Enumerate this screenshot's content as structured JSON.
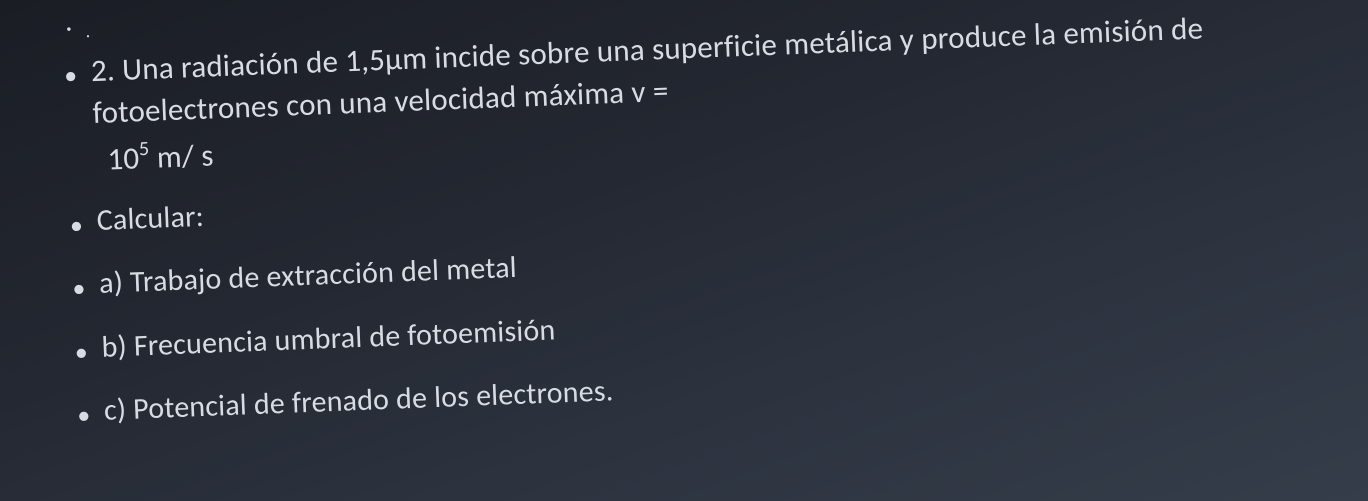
{
  "document": {
    "background_gradient": [
      "#1a1d24",
      "#242832",
      "#2d3440",
      "#353d4a"
    ],
    "text_color": "#d8dce2",
    "font_family": "Calibri",
    "base_fontsize": 30,
    "rotation_deg": -2.2,
    "lines": {
      "dot": ".",
      "problem_main": "2. Una radiación de 1,5μm incide sobre una superficie metálica y produce la emisión de fotoelectrones con una velocidad máxima v =",
      "problem_exp_base": "10",
      "problem_exp_sup": "5",
      "problem_exp_unit": " m/ s",
      "calcular": "Calcular:",
      "item_a": "a) Trabajo de extracción del metal",
      "item_b": "b) Frecuencia umbral de fotoemisión",
      "item_c": "c) Potencial de frenado de los electrones."
    },
    "bullet_char": "•"
  }
}
